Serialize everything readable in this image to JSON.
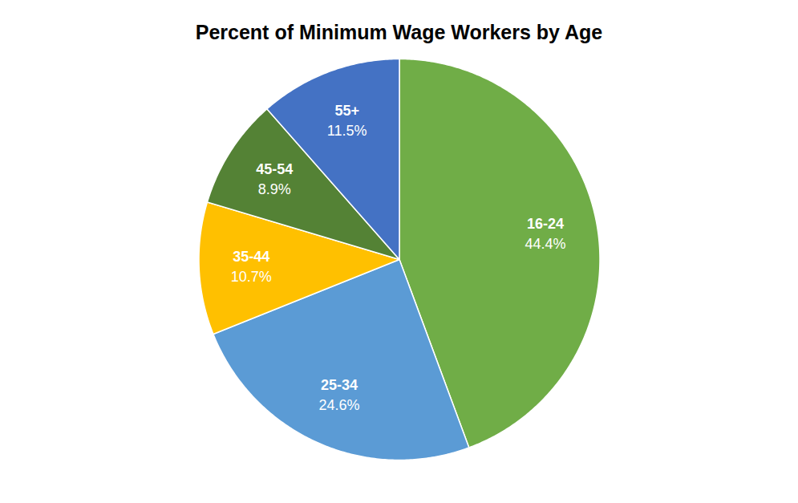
{
  "chart_data": {
    "type": "pie",
    "title": "Percent of Minimum Wage Workers by Age",
    "categories": [
      "16-24",
      "25-34",
      "35-44",
      "45-54",
      "55+"
    ],
    "values": [
      44.4,
      24.6,
      10.7,
      8.9,
      11.5
    ],
    "value_labels": [
      "44.4%",
      "24.6%",
      "10.7%",
      "8.9%",
      "11.5%"
    ],
    "colors": [
      "#70ad47",
      "#5b9bd5",
      "#ffc000",
      "#548235",
      "#4472c4"
    ],
    "data_labels": true,
    "tick_labels": false
  }
}
